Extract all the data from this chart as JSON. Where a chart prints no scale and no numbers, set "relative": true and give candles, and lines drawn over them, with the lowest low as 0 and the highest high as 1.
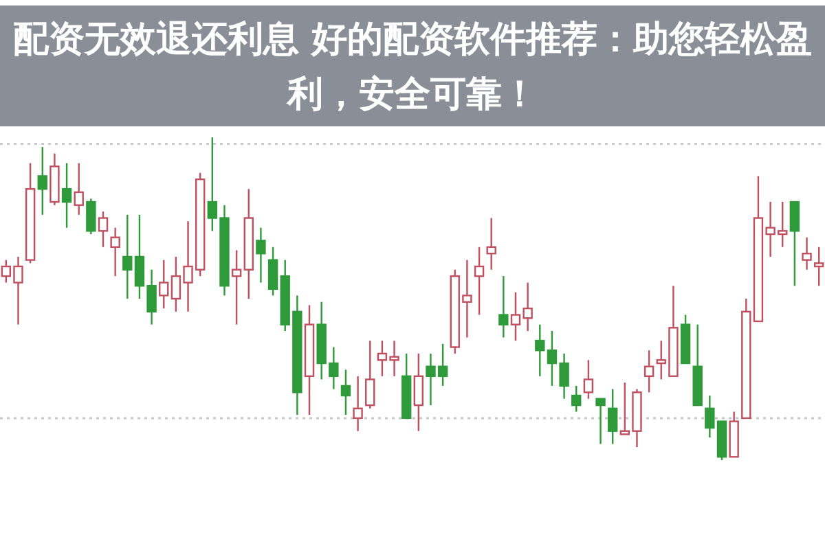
{
  "chart_data": {
    "type": "candlestick",
    "relative": true,
    "title": "配资无效退还利息 好的配资软件推荐：助您轻松盈利，安全可靠！",
    "categories": [
      null,
      null,
      null,
      null,
      null,
      null,
      null,
      null,
      null,
      null,
      null,
      null,
      null,
      null,
      null,
      null,
      null,
      null,
      null,
      null,
      null,
      null,
      null,
      null,
      null,
      null,
      null,
      null,
      null,
      null,
      null,
      null,
      null,
      null,
      null,
      null,
      null,
      null,
      null,
      null,
      null,
      null,
      null,
      null,
      null,
      null,
      null,
      null,
      null,
      null,
      null,
      null,
      null,
      null,
      null,
      null,
      null,
      null,
      null,
      null,
      null,
      null,
      null,
      null,
      null,
      null,
      null,
      null
    ],
    "ohlc": [
      [
        0.57,
        0.62,
        0.55,
        0.6
      ],
      [
        0.55,
        0.63,
        0.42,
        0.6
      ],
      [
        0.62,
        0.92,
        0.61,
        0.84
      ],
      [
        0.88,
        0.97,
        0.76,
        0.84
      ],
      [
        0.8,
        0.95,
        0.79,
        0.91
      ],
      [
        0.84,
        0.92,
        0.72,
        0.8
      ],
      [
        0.79,
        0.92,
        0.76,
        0.83
      ],
      [
        0.8,
        0.81,
        0.7,
        0.71
      ],
      [
        0.71,
        0.77,
        0.66,
        0.75
      ],
      [
        0.66,
        0.72,
        0.57,
        0.69
      ],
      [
        0.63,
        0.76,
        0.5,
        0.59
      ],
      [
        0.63,
        0.76,
        0.5,
        0.54
      ],
      [
        0.54,
        0.59,
        0.42,
        0.46
      ],
      [
        0.51,
        0.62,
        0.47,
        0.55
      ],
      [
        0.5,
        0.63,
        0.46,
        0.57
      ],
      [
        0.55,
        0.74,
        0.46,
        0.6
      ],
      [
        0.59,
        0.89,
        0.57,
        0.87
      ],
      [
        0.8,
        1.0,
        0.71,
        0.75
      ],
      [
        0.75,
        0.79,
        0.51,
        0.54
      ],
      [
        0.57,
        0.65,
        0.42,
        0.59
      ],
      [
        0.59,
        0.84,
        0.5,
        0.75
      ],
      [
        0.68,
        0.72,
        0.55,
        0.64
      ],
      [
        0.62,
        0.66,
        0.51,
        0.53
      ],
      [
        0.57,
        0.62,
        0.4,
        0.42
      ],
      [
        0.46,
        0.51,
        0.14,
        0.21
      ],
      [
        0.26,
        0.48,
        0.14,
        0.42
      ],
      [
        0.42,
        0.49,
        0.25,
        0.3
      ],
      [
        0.3,
        0.35,
        0.22,
        0.26
      ],
      [
        0.23,
        0.28,
        0.14,
        0.2
      ],
      [
        0.13,
        0.26,
        0.09,
        0.16
      ],
      [
        0.17,
        0.37,
        0.16,
        0.25
      ],
      [
        0.31,
        0.37,
        0.26,
        0.33
      ],
      [
        0.31,
        0.37,
        0.26,
        0.32
      ],
      [
        0.26,
        0.33,
        0.13,
        0.13
      ],
      [
        0.17,
        0.33,
        0.09,
        0.26
      ],
      [
        0.29,
        0.33,
        0.17,
        0.26
      ],
      [
        0.29,
        0.36,
        0.23,
        0.26
      ],
      [
        0.35,
        0.59,
        0.33,
        0.57
      ],
      [
        0.49,
        0.62,
        0.38,
        0.51
      ],
      [
        0.57,
        0.66,
        0.45,
        0.6
      ],
      [
        0.64,
        0.75,
        0.59,
        0.66
      ],
      [
        0.45,
        0.57,
        0.38,
        0.42
      ],
      [
        0.42,
        0.52,
        0.37,
        0.45
      ],
      [
        0.44,
        0.55,
        0.4,
        0.47
      ],
      [
        0.37,
        0.42,
        0.26,
        0.34
      ],
      [
        0.34,
        0.4,
        0.23,
        0.3
      ],
      [
        0.3,
        0.33,
        0.19,
        0.23
      ],
      [
        0.2,
        0.23,
        0.15,
        0.17
      ],
      [
        0.21,
        0.31,
        0.19,
        0.25
      ],
      [
        0.19,
        0.19,
        0.05,
        0.17
      ],
      [
        0.16,
        0.22,
        0.05,
        0.09
      ],
      [
        0.08,
        0.24,
        0.08,
        0.09
      ],
      [
        0.09,
        0.22,
        0.04,
        0.21
      ],
      [
        0.26,
        0.34,
        0.21,
        0.29
      ],
      [
        0.3,
        0.37,
        0.25,
        0.31
      ],
      [
        0.26,
        0.54,
        0.26,
        0.41
      ],
      [
        0.42,
        0.45,
        0.3,
        0.3
      ],
      [
        0.29,
        0.42,
        0.17,
        0.17
      ],
      [
        0.16,
        0.2,
        0.07,
        0.1
      ],
      [
        0.12,
        0.12,
        0.0,
        0.01
      ],
      [
        0.01,
        0.15,
        0.01,
        0.12
      ],
      [
        0.13,
        0.5,
        0.13,
        0.46
      ],
      [
        0.43,
        0.88,
        0.43,
        0.75
      ],
      [
        0.7,
        0.8,
        0.63,
        0.72
      ],
      [
        0.7,
        0.8,
        0.66,
        0.71
      ],
      [
        0.8,
        0.8,
        0.54,
        0.71
      ],
      [
        0.62,
        0.69,
        0.59,
        0.64
      ],
      [
        0.6,
        0.66,
        0.54,
        0.61
      ]
    ],
    "ref_lines": [
      {
        "axis": "y",
        "value": 0.98,
        "color": "#c8c8c8",
        "line_style": "dotted"
      },
      {
        "axis": "y",
        "value": 0.13,
        "color": "#c8c8c8",
        "line_style": "dotted"
      }
    ]
  }
}
